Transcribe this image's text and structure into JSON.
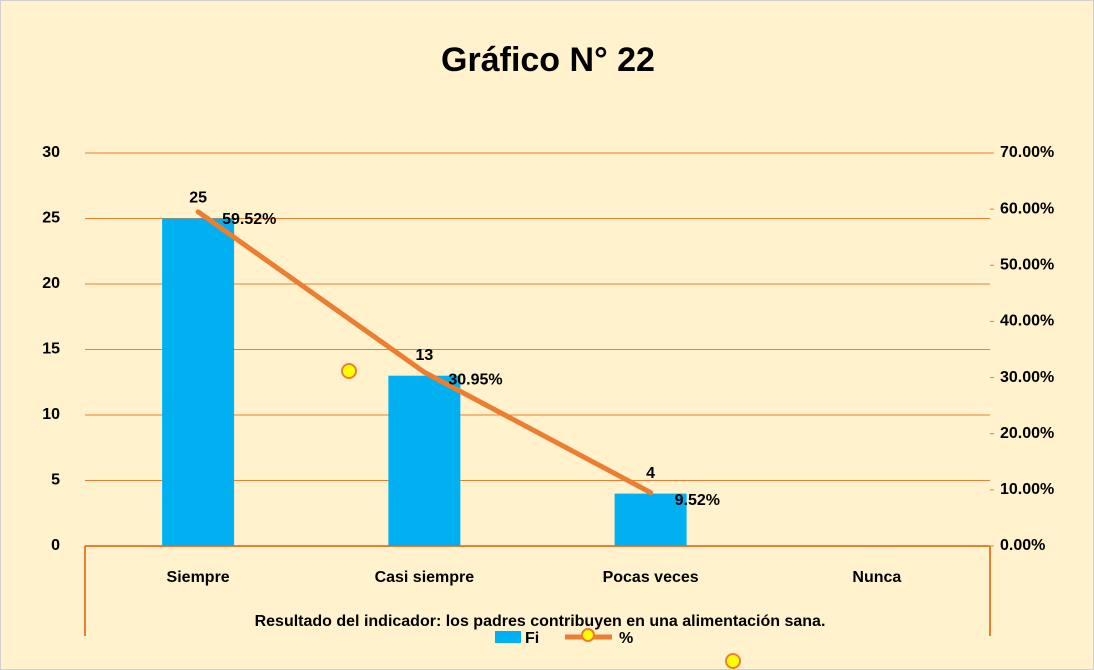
{
  "chart_data": {
    "type": "bar",
    "title": "Gráfico N° 22",
    "x_label": "Resultado del indicador:  los padres contribuyen en una alimentación sana.",
    "categories": [
      "Siempre",
      "Casi siempre",
      "Pocas veces",
      "Nunca"
    ],
    "series": [
      {
        "name": "Fi",
        "type": "bar",
        "color": "#00b0f0",
        "values": [
          25,
          13,
          4,
          null
        ]
      },
      {
        "name": "%",
        "type": "line",
        "axis": "y2",
        "color": "#ed7d31",
        "values": [
          59.52,
          30.95,
          9.52,
          null
        ],
        "value_labels": [
          "59.52%",
          "30.95%",
          "9.52%",
          null
        ]
      }
    ],
    "ylim": [
      0,
      30
    ],
    "yticks": [
      0,
      5,
      10,
      15,
      20,
      25,
      30
    ],
    "y2lim": [
      0,
      70
    ],
    "y2ticks": [
      {
        "value": 0,
        "label": "0.00%"
      },
      {
        "value": 10,
        "label": "10.00%"
      },
      {
        "value": 20,
        "label": "20.00%"
      },
      {
        "value": 30,
        "label": "30.00%"
      },
      {
        "value": 40,
        "label": "40.00%"
      },
      {
        "value": 50,
        "label": "50.00%"
      },
      {
        "value": 60,
        "label": "60.00%"
      },
      {
        "value": 70,
        "label": "70.00%"
      }
    ],
    "grid": true,
    "legend": "bottom"
  }
}
